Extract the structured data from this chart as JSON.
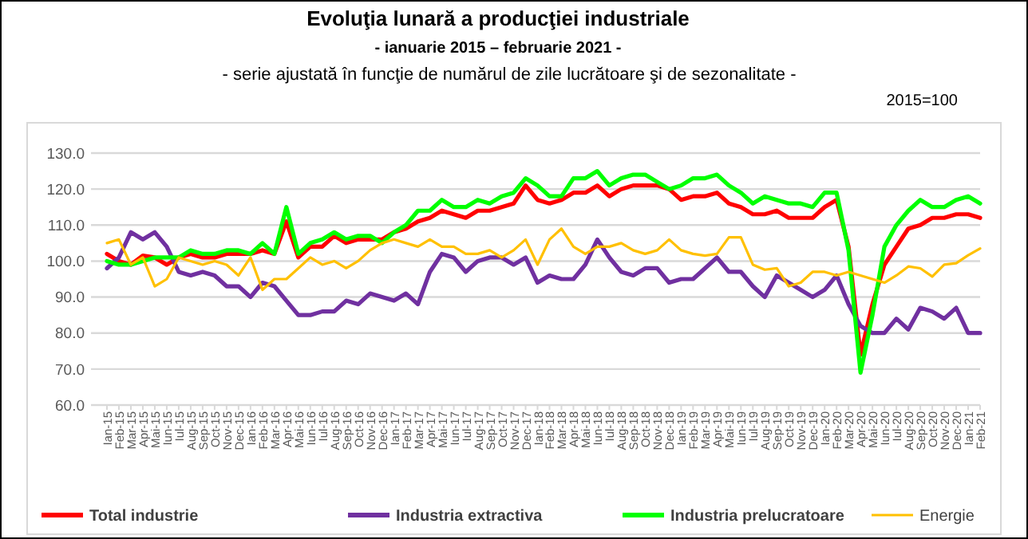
{
  "chart_data": {
    "type": "line",
    "title": "Evoluţia lunară a producţiei industriale",
    "subtitle": "-  ianuarie 2015 – februarie 2021 -",
    "annotations": [
      "- serie ajustată în funcţie de numărul de zile lucrătoare şi de sezonalitate -",
      "2015=100"
    ],
    "categories": [
      "Ian-15",
      "Feb-15",
      "Mar-15",
      "Apr-15",
      "Mai-15",
      "Iun-15",
      "Iul-15",
      "Aug-15",
      "Sep-15",
      "Oct-15",
      "Nov-15",
      "Dec-15",
      "Ian-16",
      "Feb-16",
      "Mar-16",
      "Apr-16",
      "Mai-16",
      "Iun-16",
      "Iul-16",
      "Aug-16",
      "Sep-16",
      "Oct-16",
      "Nov-16",
      "Dec-16",
      "Ian-17",
      "Feb-17",
      "Mar-17",
      "Apr-17",
      "Mai-17",
      "Iun-17",
      "Iul-17",
      "Aug-17",
      "Sep-17",
      "Oct-17",
      "Nov-17",
      "Dec-17",
      "Ian-18",
      "Feb-18",
      "Mar-18",
      "Apr-18",
      "Mai-18",
      "Iun-18",
      "Iul-18",
      "Aug-18",
      "Sep-18",
      "Oct-18",
      "Nov-18",
      "Dec-18",
      "Ian-19",
      "Feb-19",
      "Mar-19",
      "Apr-19",
      "Mai-19",
      "Iun-19",
      "Iul-19",
      "Aug-19",
      "Sep-19",
      "Oct-19",
      "Nov-19",
      "Dec-19",
      "Ian-20",
      "Feb-20",
      "Mar-20",
      "Apr-20",
      "Mai-20",
      "Iun-20",
      "Iul-20",
      "Aug-20",
      "Sep-20",
      "Oct-20",
      "Nov-20",
      "Dec-20",
      "Ian-21",
      "Feb-21"
    ],
    "series": [
      {
        "name": "Total industrie",
        "color": "#ff0000",
        "values": [
          102,
          100,
          99,
          101.5,
          101,
          99,
          101,
          102,
          101,
          101,
          102,
          102,
          102,
          103,
          102,
          111,
          101,
          104,
          104,
          107,
          105,
          106,
          106,
          106,
          108,
          109,
          111,
          112,
          114,
          113,
          112,
          114,
          114,
          115,
          116,
          121,
          117,
          116,
          117,
          119,
          119,
          121,
          118,
          120,
          121,
          121,
          121,
          120,
          117,
          118,
          118,
          119,
          116,
          115,
          113,
          113,
          114,
          112,
          112,
          112,
          115,
          117,
          104,
          74,
          88,
          99,
          104,
          109,
          110,
          112,
          112,
          113,
          113,
          112
        ]
      },
      {
        "name": "Industria extractiva",
        "color": "#7030a0",
        "values": [
          98,
          101,
          108,
          106,
          108,
          104,
          97,
          96,
          97,
          96,
          93,
          93,
          90,
          94,
          93,
          89,
          85,
          85,
          86,
          86,
          89,
          88,
          91,
          90,
          89,
          91,
          88,
          97,
          102,
          101,
          97,
          100,
          101,
          101,
          99,
          101,
          94,
          96,
          95,
          95,
          99,
          106,
          101,
          97,
          96,
          98,
          98,
          94,
          95,
          95,
          98,
          101,
          97,
          97,
          93,
          90,
          96,
          94,
          92,
          90,
          92,
          96,
          88,
          82,
          80,
          80,
          84,
          81,
          87,
          86,
          84,
          87,
          80,
          80
        ]
      },
      {
        "name": "Industria prelucratoare",
        "color": "#00ff00",
        "values": [
          100,
          99,
          99,
          100,
          101,
          101,
          101,
          103,
          102,
          102,
          103,
          103,
          102,
          105,
          102,
          115,
          102,
          105,
          106,
          108,
          106,
          107,
          107,
          105,
          108,
          110,
          114,
          114,
          117,
          115,
          115,
          117,
          116,
          118,
          119,
          123,
          121,
          118,
          118,
          123,
          123,
          125,
          121,
          123,
          124,
          124,
          122,
          120,
          121,
          123,
          123,
          124,
          121,
          119,
          116,
          118,
          117,
          116,
          116,
          115,
          119,
          119,
          103,
          69,
          85,
          104,
          110,
          114,
          117,
          115,
          115,
          117,
          118,
          116
        ]
      },
      {
        "name": "Energie",
        "color": "#ffc000",
        "values": [
          105,
          106,
          99,
          101,
          93,
          95,
          101,
          100,
          99,
          100,
          99,
          96,
          101,
          92,
          95,
          95,
          98,
          101,
          99,
          100,
          98,
          100,
          103,
          105,
          106,
          105,
          104,
          106,
          104,
          104,
          102,
          102,
          103,
          101,
          103,
          106,
          99,
          106,
          109,
          104,
          102,
          104,
          104,
          105,
          103,
          102,
          103,
          106,
          103,
          102,
          101.5,
          102,
          106.6,
          106.6,
          99,
          97.6,
          98,
          93,
          94,
          97,
          97,
          96,
          97,
          96,
          95,
          94,
          96,
          98.5,
          98,
          95.7,
          99,
          99.4,
          101.6,
          103.5
        ]
      }
    ],
    "ylim": [
      60,
      130
    ],
    "yticks": [
      {
        "value": 60,
        "label": "60.0"
      },
      {
        "value": 70,
        "label": "70.0"
      },
      {
        "value": 80,
        "label": "80.0"
      },
      {
        "value": 90,
        "label": "90.0"
      },
      {
        "value": 100,
        "label": "100.0"
      },
      {
        "value": 110,
        "label": "110.0"
      },
      {
        "value": 120,
        "label": "120.0"
      },
      {
        "value": 130,
        "label": "130.0"
      }
    ],
    "grid": "y",
    "legend": "bottom",
    "line_style": "solid",
    "marker": "none"
  }
}
